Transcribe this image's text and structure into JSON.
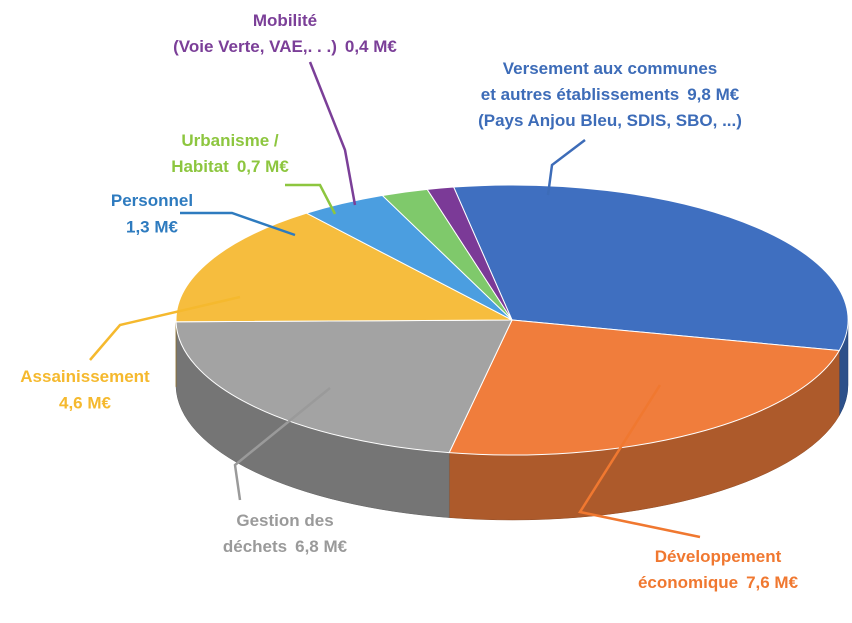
{
  "chart_data": {
    "type": "pie",
    "categories": [
      [
        "Versement aux communes",
        "et autres établissements",
        "(Pays Anjou Bleu, SDIS, SBO, ...)"
      ],
      [
        "Développement",
        "économique"
      ],
      [
        "Gestion des",
        "déchets"
      ],
      [
        "Assainissement"
      ],
      [
        "Personnel"
      ],
      [
        "Urbanisme /",
        "Habitat"
      ],
      [
        "Mobilité",
        "(Voie Verte, VAE,. . .)"
      ]
    ],
    "values": [
      9.8,
      7.6,
      6.8,
      4.6,
      1.3,
      0.7,
      0.4
    ],
    "value_labels": [
      "9,8 M€",
      "7,6 M€",
      "6,8 M€",
      "4,6 M€",
      "1,3 M€",
      "0,7 M€",
      "0,4 M€"
    ],
    "colors": [
      "#3f6fc0",
      "#f07d3c",
      "#a3a3a3",
      "#f6bd3e",
      "#4b9ee0",
      "#7fc96b",
      "#7b3a97"
    ],
    "label_colors": [
      "#3d6cb8",
      "#f07830",
      "#9a9a9a",
      "#f5b92e",
      "#2e7bbf",
      "#8dc63f",
      "#7b3f98"
    ]
  }
}
